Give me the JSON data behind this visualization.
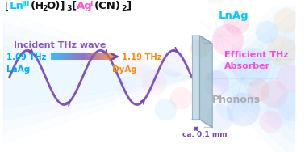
{
  "wave_color": "#7744bb",
  "label_incident": "Incident THz wave",
  "label_incident_color": "#8855cc",
  "label_lnag": "LnAg",
  "label_lnag_color": "#00ccff",
  "label_efficient": "Efficient THz\nAbsorber",
  "label_efficient_color": "#ff44dd",
  "label_phonons": "Phonons",
  "label_phonons_color": "#aaaaaa",
  "freq_start": "1.09 THz",
  "freq_start_color": "#00aaff",
  "freq_end": "1.19 THz",
  "freq_end_color": "#ff8800",
  "label_laag": "LaAg",
  "label_laag_color": "#00aaff",
  "label_dyag": "DyAg",
  "label_dyag_color": "#ff8800",
  "label_thickness": "ca. 0.1 mm",
  "label_thickness_color": "#7744bb",
  "plate_face_color": "#b8d8e8",
  "plate_side_color": "#99bbcc",
  "plate_top_color": "#cce0ea",
  "bg_color": "#ffffff",
  "formula_bracket_color": "#111111",
  "formula_ln_color": "#00ccff",
  "formula_ag_color": "#ff66cc",
  "fan_color_left": "#c8e8ff",
  "fan_color_right": "#c8e8ff"
}
